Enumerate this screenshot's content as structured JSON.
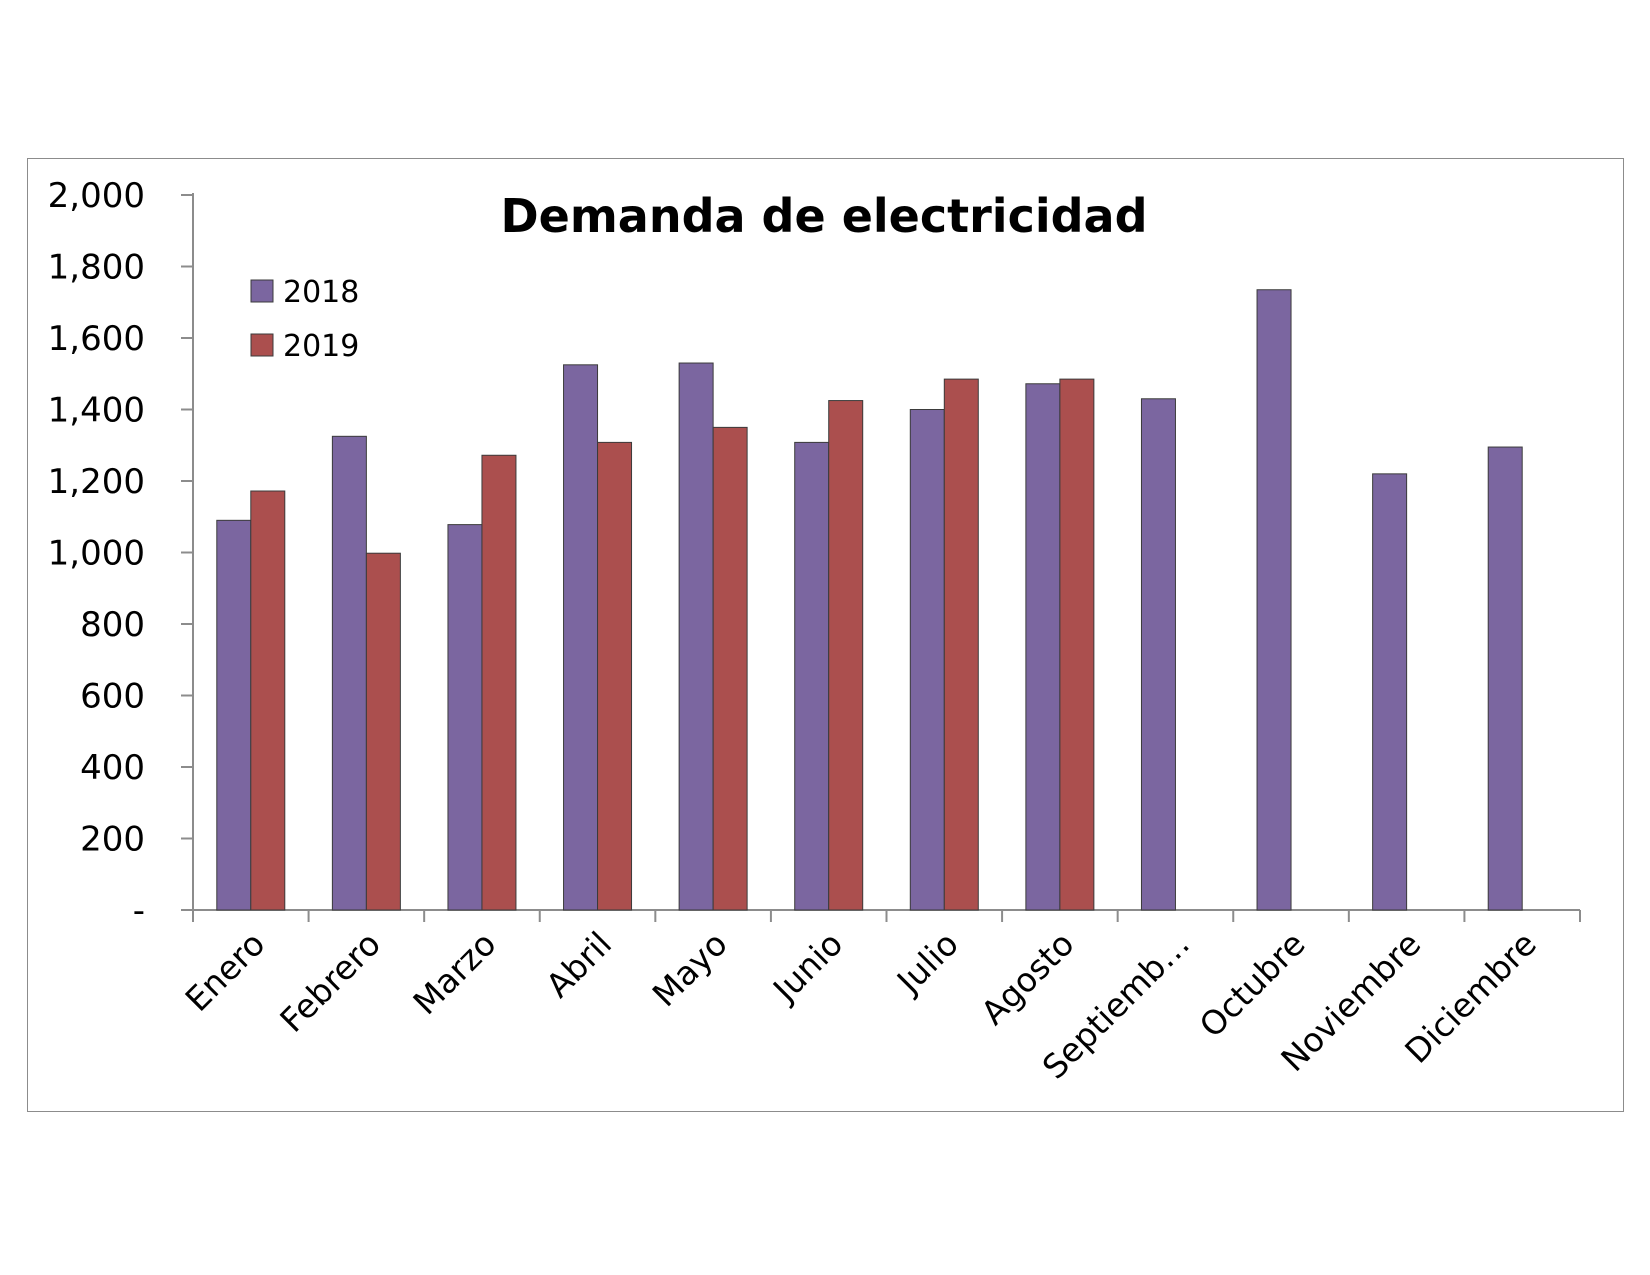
{
  "chart_data": {
    "type": "bar",
    "title": "Demanda de electricidad",
    "xlabel": "",
    "ylabel": "",
    "ylim": [
      0,
      2000
    ],
    "yticks": [
      0,
      200,
      400,
      600,
      800,
      1000,
      1200,
      1400,
      1600,
      1800,
      2000
    ],
    "ytick_labels": [
      "-",
      "200",
      "400",
      "600",
      "800",
      "1,000",
      "1,200",
      "1,400",
      "1,600",
      "1,800",
      "2,000"
    ],
    "categories": [
      "Enero",
      "Febrero",
      "Marzo",
      "Abril",
      "Mayo",
      "Junio",
      "Julio",
      "Agosto",
      "Septiemb…",
      "Octubre",
      "Noviembre",
      "Diciembre"
    ],
    "series": [
      {
        "name": "2018",
        "color": "#7B66A0",
        "values": [
          1090,
          1325,
          1078,
          1525,
          1530,
          1308,
          1400,
          1472,
          1430,
          1735,
          1220,
          1295
        ]
      },
      {
        "name": "2019",
        "color": "#AB4F4E",
        "values": [
          1172,
          998,
          1272,
          1308,
          1350,
          1425,
          1485,
          1485,
          null,
          null,
          null,
          null
        ]
      }
    ],
    "grid": false,
    "legend_position": "top-left"
  }
}
